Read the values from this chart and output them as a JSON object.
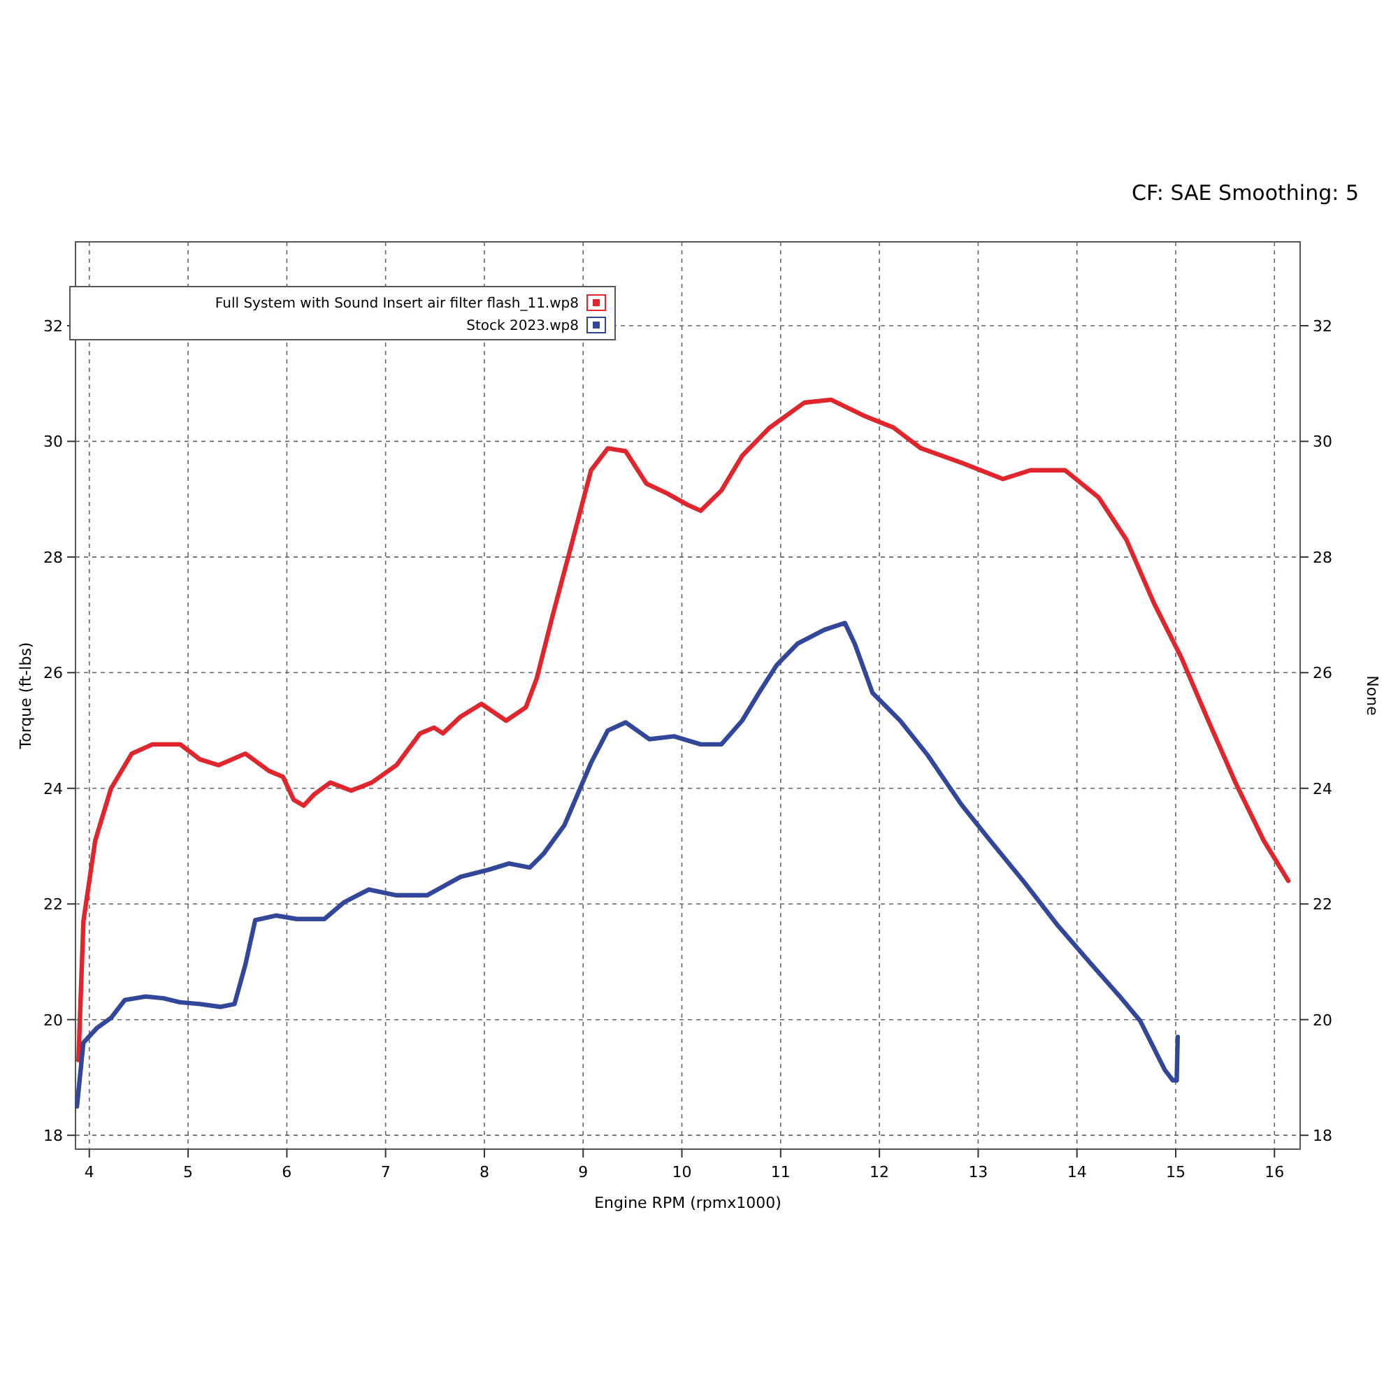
{
  "chart_data": {
    "type": "line",
    "annotations": [
      "CF: SAE Smoothing: 5"
    ],
    "xlabel": "Engine RPM (rpmx1000)",
    "ylabel": "Torque (ft-lbs)",
    "y2label": "None",
    "xlim": [
      3.86,
      16.26
    ],
    "ylim": [
      17.76,
      33.45
    ],
    "y2lim": [
      17.76,
      33.45
    ],
    "xticks": [
      4,
      5,
      6,
      7,
      8,
      9,
      10,
      11,
      12,
      13,
      14,
      15,
      16
    ],
    "yticks": [
      18,
      20,
      22,
      24,
      26,
      28,
      30,
      32
    ],
    "y2ticks": [
      18,
      20,
      22,
      24,
      26,
      28,
      30,
      32
    ],
    "grid": true,
    "legend": "top left",
    "series": [
      {
        "name": "Full System with Sound Insert air filter flash_11.wp8",
        "color": "#e0262c",
        "x": [
          3.89,
          3.94,
          4.06,
          4.22,
          4.43,
          4.64,
          4.92,
          5.12,
          5.31,
          5.58,
          5.82,
          5.96,
          6.07,
          6.17,
          6.28,
          6.44,
          6.65,
          6.86,
          7.11,
          7.35,
          7.49,
          7.58,
          7.76,
          7.97,
          8.22,
          8.42,
          8.53,
          8.69,
          8.88,
          9.08,
          9.25,
          9.43,
          9.64,
          9.85,
          10.06,
          10.19,
          10.4,
          10.61,
          10.89,
          11.24,
          11.51,
          11.86,
          12.14,
          12.42,
          12.83,
          13.25,
          13.53,
          13.88,
          14.22,
          14.5,
          14.78,
          15.06,
          15.33,
          15.61,
          15.89,
          16.14
        ],
        "values": [
          19.3,
          21.7,
          23.1,
          24.0,
          24.6,
          24.76,
          24.76,
          24.5,
          24.4,
          24.6,
          24.3,
          24.2,
          23.8,
          23.7,
          23.9,
          24.1,
          23.96,
          24.1,
          24.4,
          24.95,
          25.05,
          24.95,
          25.24,
          25.46,
          25.17,
          25.4,
          25.9,
          26.98,
          28.2,
          29.5,
          29.88,
          29.83,
          29.27,
          29.1,
          28.9,
          28.8,
          29.15,
          29.75,
          30.24,
          30.67,
          30.72,
          30.43,
          30.24,
          29.88,
          29.63,
          29.35,
          29.5,
          29.5,
          29.03,
          28.3,
          27.2,
          26.25,
          25.17,
          24.08,
          23.1,
          22.4
        ]
      },
      {
        "name": "Stock 2023.wp8",
        "color": "#33479a",
        "x": [
          3.875,
          3.94,
          4.08,
          4.22,
          4.36,
          4.57,
          4.75,
          4.92,
          5.12,
          5.33,
          5.47,
          5.58,
          5.68,
          5.89,
          6.1,
          6.38,
          6.58,
          6.83,
          7.11,
          7.42,
          7.76,
          8.04,
          8.25,
          8.46,
          8.6,
          8.81,
          9.08,
          9.25,
          9.43,
          9.67,
          9.92,
          10.19,
          10.4,
          10.61,
          10.78,
          10.96,
          11.17,
          11.44,
          11.65,
          11.75,
          11.93,
          12.21,
          12.49,
          12.83,
          13.11,
          13.46,
          13.81,
          14.15,
          14.43,
          14.64,
          14.89,
          14.97,
          15.01,
          15.02
        ],
        "values": [
          18.5,
          19.6,
          19.86,
          20.03,
          20.34,
          20.4,
          20.37,
          20.3,
          20.27,
          20.22,
          20.27,
          20.95,
          21.72,
          21.8,
          21.74,
          21.74,
          22.03,
          22.25,
          22.15,
          22.15,
          22.47,
          22.59,
          22.7,
          22.63,
          22.87,
          23.36,
          24.44,
          25.0,
          25.14,
          24.85,
          24.9,
          24.76,
          24.76,
          25.17,
          25.65,
          26.13,
          26.5,
          26.74,
          26.86,
          26.5,
          25.65,
          25.17,
          24.57,
          23.72,
          23.12,
          22.39,
          21.62,
          20.95,
          20.41,
          19.98,
          19.13,
          18.95,
          18.95,
          19.7
        ]
      }
    ]
  }
}
